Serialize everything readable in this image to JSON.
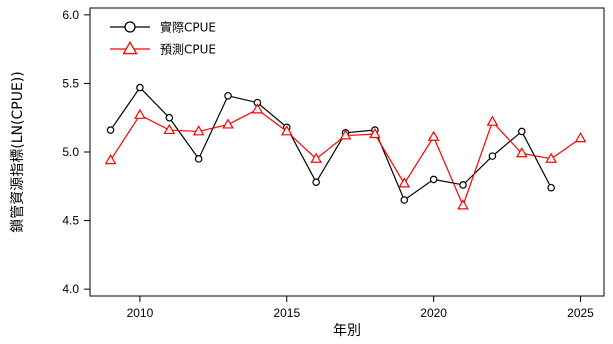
{
  "chart_data": {
    "type": "line",
    "title": "",
    "xlabel": "年別",
    "ylabel": "鎖管資源指標(LN(CPUE))",
    "xlim": [
      2008.3,
      2025.8
    ],
    "ylim": [
      3.95,
      6.05
    ],
    "xticks": [
      2010,
      2015,
      2020,
      2025
    ],
    "yticks": [
      4.0,
      4.5,
      5.0,
      5.5,
      6.0
    ],
    "xtick_labels": [
      "2010",
      "2015",
      "2020",
      "2025"
    ],
    "ytick_labels": [
      "4.0",
      "4.5",
      "5.0",
      "5.5",
      "6.0"
    ],
    "grid": false,
    "legend_position": "top-left",
    "series": [
      {
        "name": "實際CPUE",
        "color": "#000000",
        "marker": "circle",
        "x": [
          2009,
          2010,
          2011,
          2012,
          2013,
          2014,
          2015,
          2016,
          2017,
          2018,
          2019,
          2020,
          2021,
          2022,
          2023,
          2024
        ],
        "values": [
          5.16,
          5.47,
          5.25,
          4.95,
          5.41,
          5.36,
          5.18,
          4.78,
          5.14,
          5.16,
          4.65,
          4.8,
          4.76,
          4.97,
          5.15,
          4.74
        ]
      },
      {
        "name": "預測CPUE",
        "color": "#ff0000",
        "marker": "triangle",
        "x": [
          2009,
          2010,
          2011,
          2012,
          2013,
          2014,
          2015,
          2016,
          2017,
          2018,
          2019,
          2020,
          2021,
          2022,
          2023,
          2024,
          2025
        ],
        "values": [
          4.94,
          5.27,
          5.16,
          5.15,
          5.2,
          5.31,
          5.15,
          4.95,
          5.12,
          5.13,
          4.77,
          5.11,
          4.61,
          5.22,
          4.99,
          4.95,
          5.1
        ]
      }
    ]
  }
}
